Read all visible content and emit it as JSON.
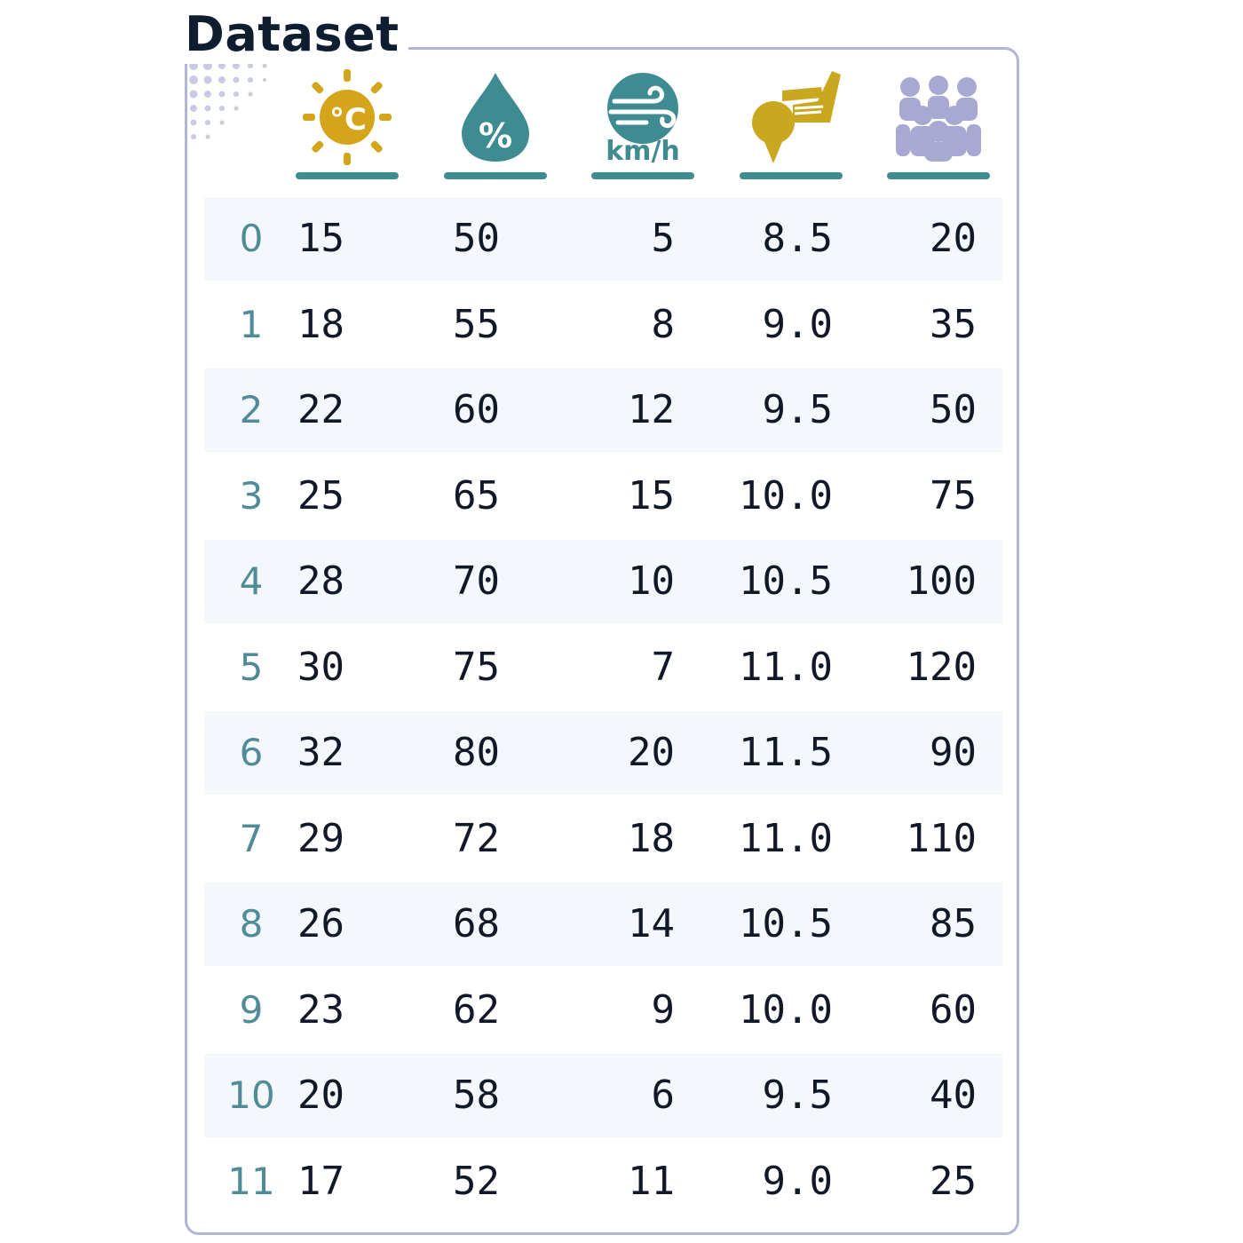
{
  "title": "Dataset",
  "colors": {
    "temperature": "#d4a51b",
    "humidity": "#3f8b92",
    "wind": "#3f8b92",
    "golf": "#c9a820",
    "crowd": "#a8a9d2",
    "row_shade": "#f4f8fd",
    "index_text": "#4f8c97"
  },
  "columns": [
    {
      "icon": "thermometer-sun-icon",
      "label": "°C"
    },
    {
      "icon": "humidity-drop-icon",
      "label": "%"
    },
    {
      "icon": "wind-icon",
      "label": "km/h"
    },
    {
      "icon": "golf-club-icon",
      "label": ""
    },
    {
      "icon": "crowd-icon",
      "label": ""
    }
  ],
  "chart_data": {
    "type": "table",
    "index": [
      "0",
      "1",
      "2",
      "3",
      "4",
      "5",
      "6",
      "7",
      "8",
      "9",
      "10",
      "11"
    ],
    "rows": [
      [
        "15",
        "50",
        "5",
        "8.5",
        "20"
      ],
      [
        "18",
        "55",
        "8",
        "9.0",
        "35"
      ],
      [
        "22",
        "60",
        "12",
        "9.5",
        "50"
      ],
      [
        "25",
        "65",
        "15",
        "10.0",
        "75"
      ],
      [
        "28",
        "70",
        "10",
        "10.5",
        "100"
      ],
      [
        "30",
        "75",
        "7",
        "11.0",
        "120"
      ],
      [
        "32",
        "80",
        "20",
        "11.5",
        "90"
      ],
      [
        "29",
        "72",
        "18",
        "11.0",
        "110"
      ],
      [
        "26",
        "68",
        "14",
        "10.5",
        "85"
      ],
      [
        "23",
        "62",
        "9",
        "10.0",
        "60"
      ],
      [
        "20",
        "58",
        "6",
        "9.5",
        "40"
      ],
      [
        "17",
        "52",
        "11",
        "9.0",
        "25"
      ]
    ]
  }
}
